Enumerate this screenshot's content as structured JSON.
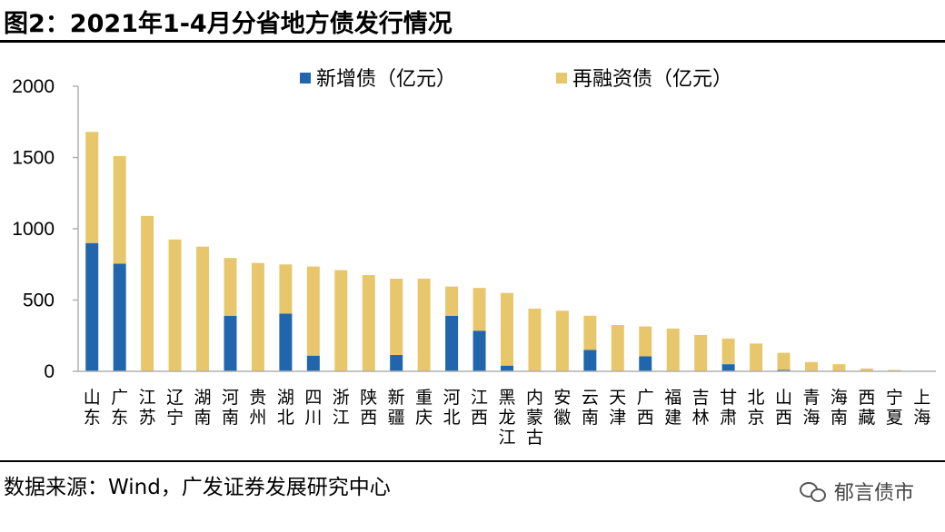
{
  "title": "图2：2021年1-4月分省地方债发行情况",
  "source": "数据来源：Wind，广发证券发展研究中心",
  "watermark": {
    "text": "郁言债市",
    "icon": "wechat-icon"
  },
  "colors": {
    "new_debt": "#2166ac",
    "refinancing_debt": "#e8c76c",
    "axis": "#b0b0b0"
  },
  "chart_data": {
    "type": "bar",
    "stacked": true,
    "title": "2021年1-4月分省地方债发行情况",
    "xlabel": "",
    "ylabel": "",
    "ylim": [
      0,
      2000
    ],
    "yticks": [
      0,
      500,
      1000,
      1500,
      2000
    ],
    "grid": false,
    "legend_position": "top",
    "categories": [
      "山东",
      "广东",
      "江苏",
      "辽宁",
      "湖南",
      "河南",
      "贵州",
      "湖北",
      "四川",
      "浙江",
      "陕西",
      "新疆",
      "重庆",
      "河北",
      "江西",
      "黑龙江",
      "内蒙古",
      "安徽",
      "云南",
      "天津",
      "广西",
      "福建",
      "吉林",
      "甘肃",
      "北京",
      "山西",
      "青海",
      "海南",
      "西藏",
      "宁夏",
      "上海"
    ],
    "series": [
      {
        "name": "新增债（亿元）",
        "color": "#2166ac",
        "values": [
          900,
          755,
          0,
          0,
          0,
          390,
          0,
          405,
          110,
          0,
          0,
          115,
          0,
          390,
          285,
          40,
          0,
          0,
          150,
          0,
          105,
          0,
          0,
          50,
          0,
          10,
          0,
          0,
          0,
          0,
          0
        ]
      },
      {
        "name": "再融资债（亿元）",
        "color": "#e8c76c",
        "values": [
          780,
          755,
          1090,
          925,
          875,
          405,
          760,
          345,
          625,
          710,
          675,
          535,
          650,
          205,
          300,
          510,
          440,
          425,
          240,
          325,
          210,
          300,
          255,
          180,
          195,
          120,
          65,
          50,
          20,
          10,
          2
        ]
      }
    ]
  }
}
